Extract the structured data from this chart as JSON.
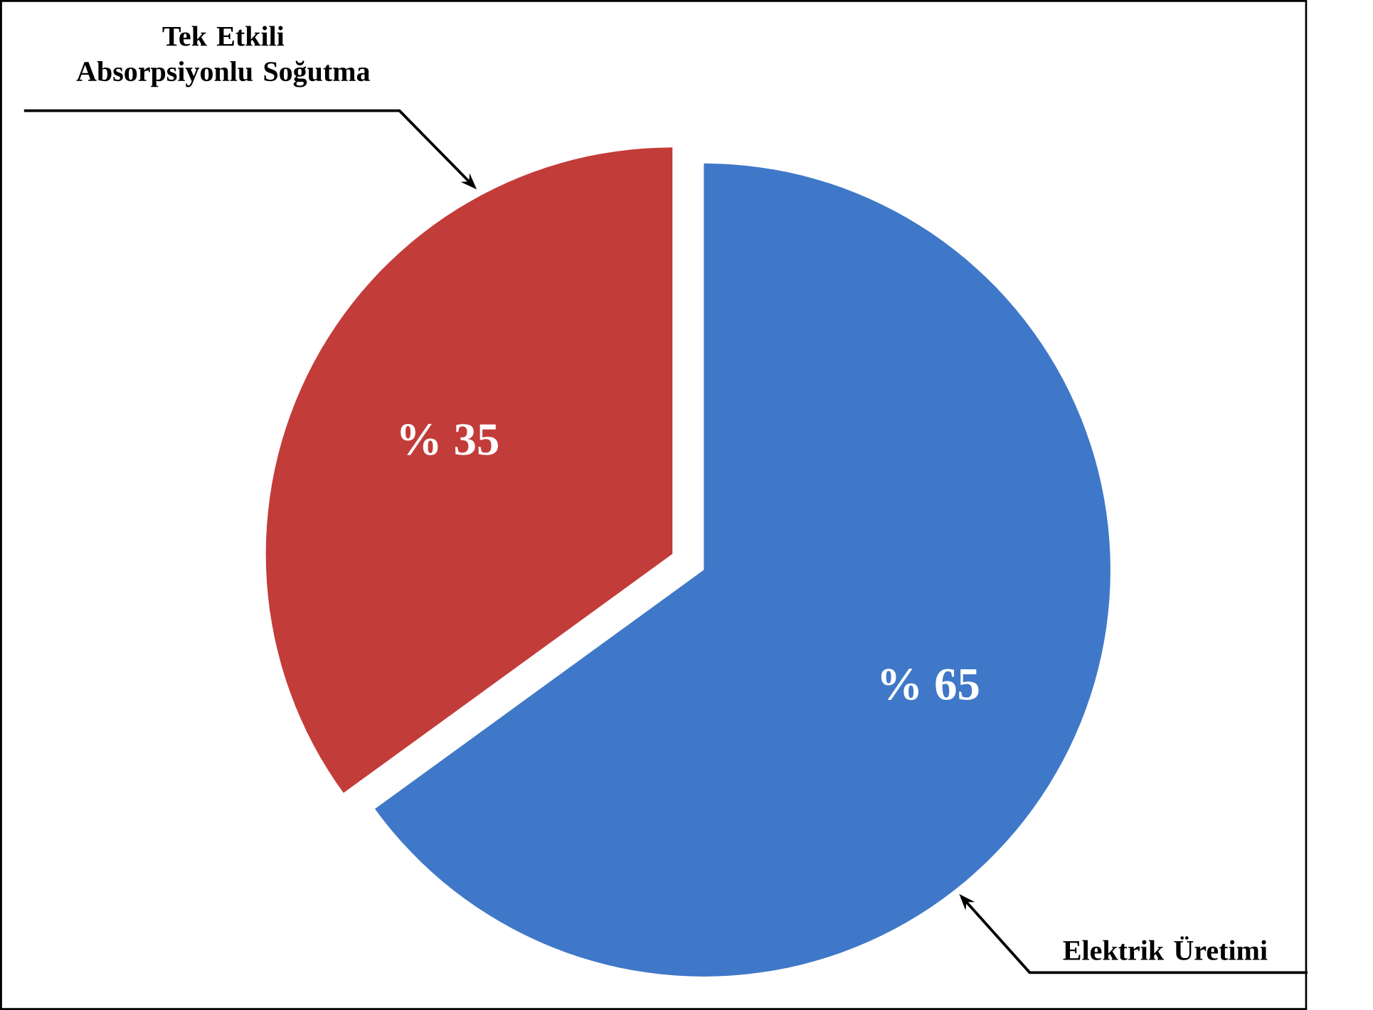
{
  "chart_data": {
    "type": "pie",
    "categories": [
      "Elektrik Üretimi",
      "Tek Etkili Absorpsiyonlu Soğutma"
    ],
    "values": [
      65,
      35
    ],
    "value_labels": [
      "% 65",
      "% 35"
    ],
    "colors": [
      "#3f78c8",
      "#c23c3a"
    ]
  }
}
